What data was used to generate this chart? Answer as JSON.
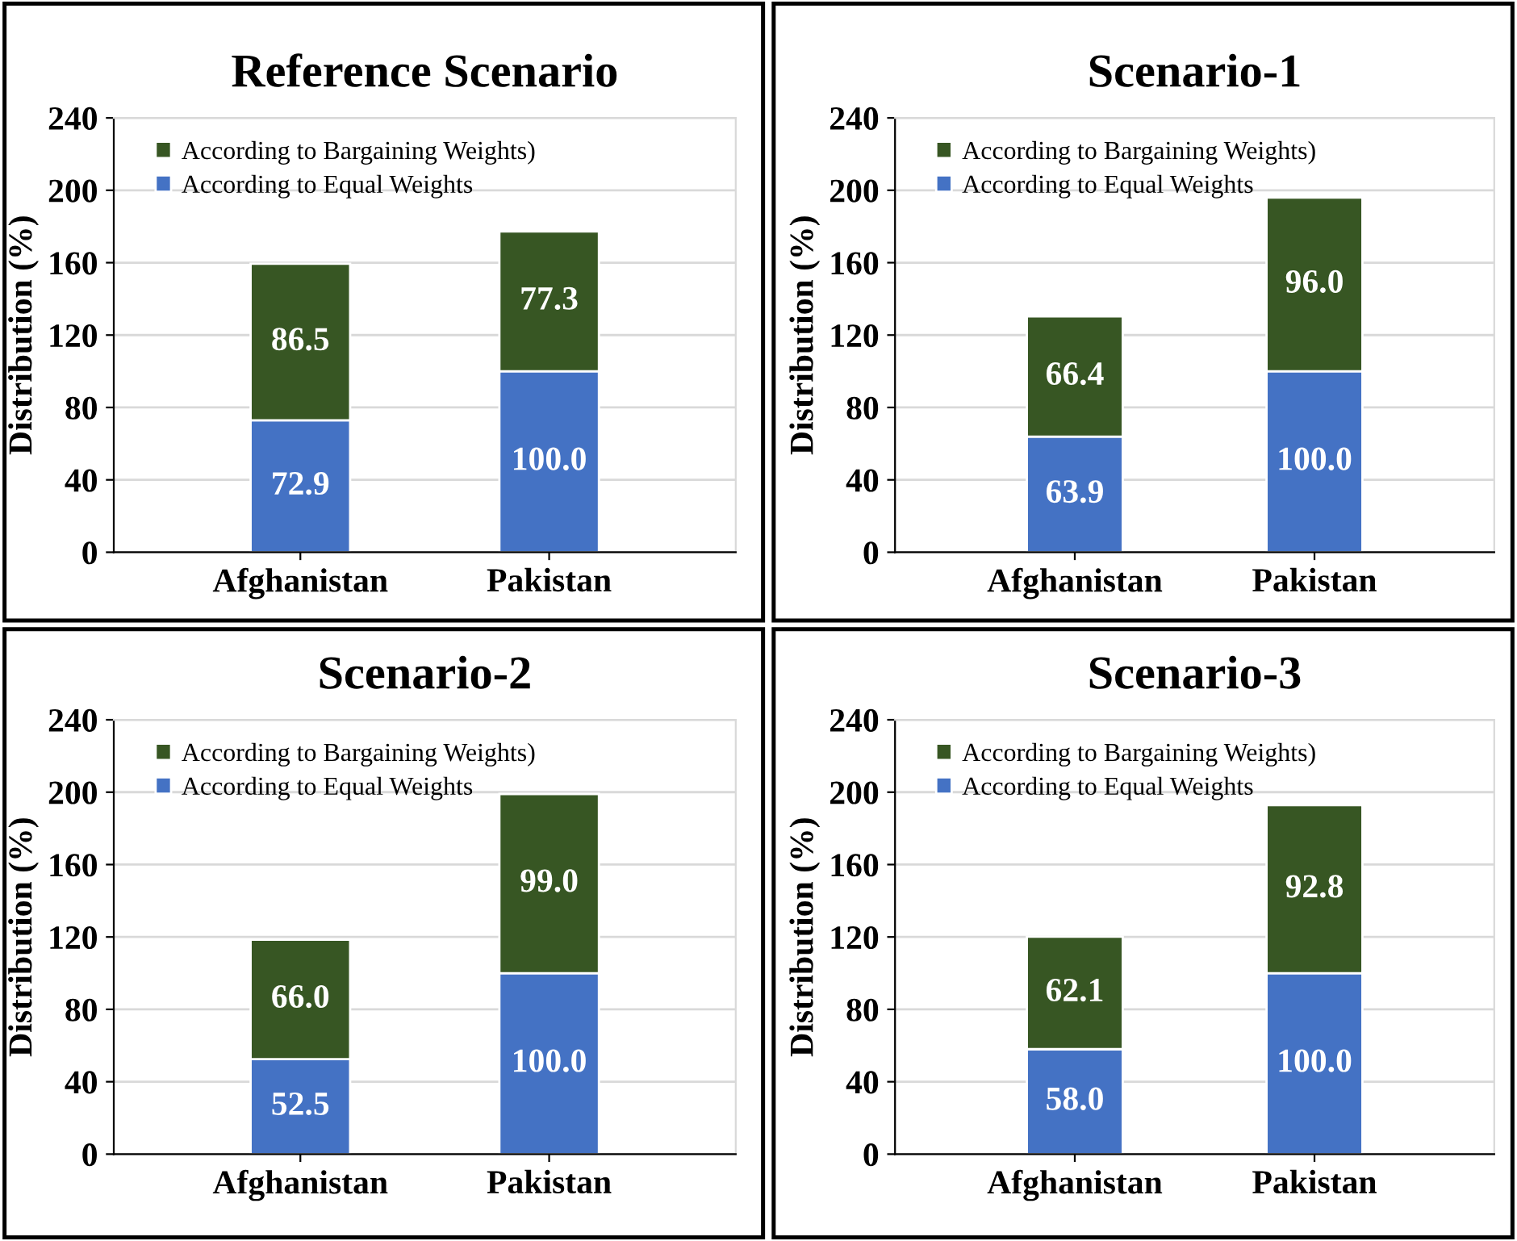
{
  "chart_data": [
    {
      "type": "bar",
      "title": "Reference Scenario",
      "ylabel": "Distribution (%)",
      "categories": [
        "Afghanistan",
        "Pakistan"
      ],
      "stacked": true,
      "ylim": [
        0,
        240
      ],
      "yticks": [
        0,
        40,
        80,
        120,
        160,
        200,
        240
      ],
      "grid": "y",
      "legend": "top left",
      "series": [
        {
          "name": "According to Equal Weights",
          "color": "#4472c4",
          "values": [
            72.9,
            100.0
          ],
          "value_labels": [
            "72.9",
            "100.0"
          ]
        },
        {
          "name": "According to Bargaining Weights)",
          "color": "#375623",
          "values": [
            86.5,
            77.3
          ],
          "value_labels": [
            "86.5",
            "77.3"
          ]
        }
      ]
    },
    {
      "type": "bar",
      "title": "Scenario-1",
      "ylabel": "Distribution (%)",
      "categories": [
        "Afghanistan",
        "Pakistan"
      ],
      "stacked": true,
      "ylim": [
        0,
        240
      ],
      "yticks": [
        0,
        40,
        80,
        120,
        160,
        200,
        240
      ],
      "grid": "y",
      "legend": "top left",
      "series": [
        {
          "name": "According to Equal Weights",
          "color": "#4472c4",
          "values": [
            63.9,
            100.0
          ],
          "value_labels": [
            "63.9",
            "100.0"
          ]
        },
        {
          "name": "According to Bargaining Weights)",
          "color": "#375623",
          "values": [
            66.4,
            96.0
          ],
          "value_labels": [
            "66.4",
            "96.0"
          ]
        }
      ]
    },
    {
      "type": "bar",
      "title": "Scenario-2",
      "ylabel": "Distribution (%)",
      "categories": [
        "Afghanistan",
        "Pakistan"
      ],
      "stacked": true,
      "ylim": [
        0,
        240
      ],
      "yticks": [
        0,
        40,
        80,
        120,
        160,
        200,
        240
      ],
      "grid": "y",
      "legend": "top left",
      "series": [
        {
          "name": "According to Equal Weights",
          "color": "#4472c4",
          "values": [
            52.5,
            100.0
          ],
          "value_labels": [
            "52.5",
            "100.0"
          ]
        },
        {
          "name": "According to Bargaining Weights)",
          "color": "#375623",
          "values": [
            66.0,
            99.0
          ],
          "value_labels": [
            "66.0",
            "99.0"
          ]
        }
      ]
    },
    {
      "type": "bar",
      "title": "Scenario-3",
      "ylabel": "Distribution (%)",
      "categories": [
        "Afghanistan",
        "Pakistan"
      ],
      "stacked": true,
      "ylim": [
        0,
        240
      ],
      "yticks": [
        0,
        40,
        80,
        120,
        160,
        200,
        240
      ],
      "grid": "y",
      "legend": "top left",
      "series": [
        {
          "name": "According to Equal Weights",
          "color": "#4472c4",
          "values": [
            58.0,
            100.0
          ],
          "value_labels": [
            "58.0",
            "100.0"
          ]
        },
        {
          "name": "According to Bargaining Weights)",
          "color": "#375623",
          "values": [
            62.1,
            92.8
          ],
          "value_labels": [
            "62.1",
            "92.8"
          ]
        }
      ]
    }
  ]
}
